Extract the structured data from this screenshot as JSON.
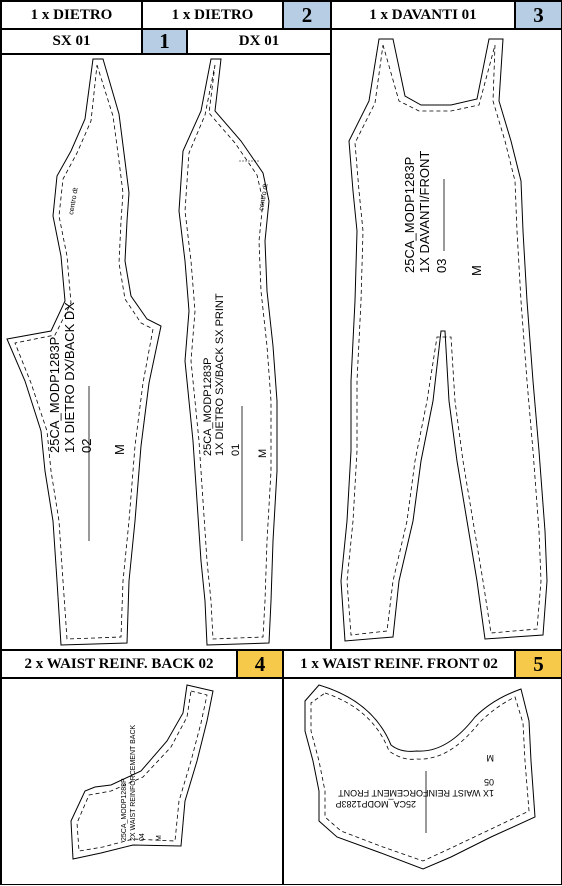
{
  "headers": {
    "piece1_qty": "1 x DIETRO",
    "piece2_qty": "1 x DIETRO",
    "piece3_qty": "1 x DAVANTI 01",
    "piece1_side": "SX 01",
    "piece2_side": "DX 01",
    "piece4_qty": "2 x WAIST REINF. BACK 02",
    "piece5_qty": "1 x WAIST REINF. FRONT 02"
  },
  "numbers": {
    "n1": "1",
    "n2": "2",
    "n3": "3",
    "n4": "4",
    "n5": "5"
  },
  "colors": {
    "number_blue": "#b7cde3",
    "number_yellow": "#f6c94b"
  },
  "pieces": {
    "back_dx": {
      "mark": "centro dt",
      "line1": "25CA_MODP1283P",
      "line2": "1X DIETRO DX/BACK DX",
      "line3": "02",
      "size": "M"
    },
    "back_sx": {
      "mark": "centro dt",
      "line1": "25CA_MODP1283P",
      "line2": "1X DIETRO SX/BACK SX PRINT",
      "line3": "01",
      "size": "M"
    },
    "front": {
      "line1": "25CA_MODP1283P",
      "line2": "1X DAVANTI/FRONT",
      "line3": "03",
      "size": "M"
    },
    "waist_back": {
      "line1": "25CA_MODP1283P",
      "line2": "2X WAIST REINFORCEMENT BACK",
      "line3": "04",
      "size": "M"
    },
    "waist_front": {
      "line1": "25CA_MODP1283P",
      "line2": "1X WAIST REINFORCEMENT FRONT",
      "line3": "05",
      "size": "M"
    }
  }
}
